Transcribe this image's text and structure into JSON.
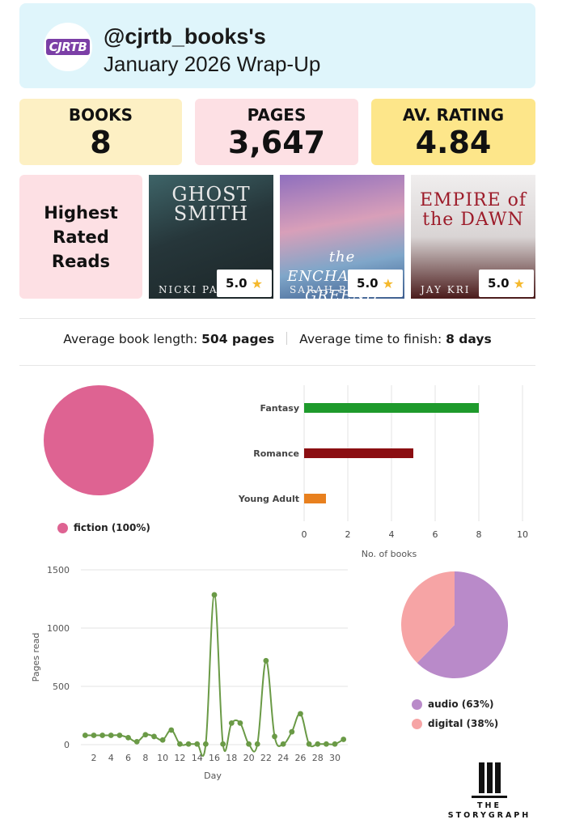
{
  "header": {
    "avatar_text": "CJRTB",
    "handle": "@cjrtb_books's",
    "title": "January 2026 Wrap-Up"
  },
  "stats": {
    "books": {
      "label": "BOOKS",
      "value": "8"
    },
    "pages": {
      "label": "PAGES",
      "value": "3,647"
    },
    "rating": {
      "label": "AV. RATING",
      "value": "4.84"
    }
  },
  "highest_rated": {
    "label": "Highest\nRated\nReads",
    "books": [
      {
        "title": "GHOST SMITH",
        "author": "NICKI PAU",
        "rating": "5.0"
      },
      {
        "title": "the ENCHANTED GREENH",
        "author": "SARAH BETH",
        "rating": "5.0"
      },
      {
        "title": "EMPIRE of the DAWN",
        "author": "JAY KRI",
        "rating": "5.0"
      }
    ]
  },
  "averages": {
    "length_label": "Average book length:",
    "length_value": "504 pages",
    "time_label": "Average time to finish:",
    "time_value": "8 days"
  },
  "colors": {
    "header_bg": "#dff5fb",
    "books_bg": "#fdf0c4",
    "pages_bg": "#fde0e4",
    "rating_bg": "#fde68a",
    "fiction": "#de6392",
    "audio": "#b98ac9",
    "digital": "#f6a4a5",
    "line": "#6a9a46",
    "star": "#f5b92d"
  },
  "chart_data": [
    {
      "type": "pie",
      "labels": [
        "fiction (100%)"
      ],
      "values": [
        100
      ],
      "colors": [
        "#de6392"
      ],
      "legend": "bottom"
    },
    {
      "type": "bar",
      "orientation": "horizontal",
      "categories": [
        "Fantasy",
        "Romance",
        "Young Adult"
      ],
      "values": [
        8,
        5,
        1
      ],
      "colors": [
        "#1e9a2c",
        "#8b0e12",
        "#e8801e"
      ],
      "xlabel": "No. of books",
      "xlim": [
        0,
        10
      ],
      "xticks": [
        "0",
        "2",
        "4",
        "6",
        "8",
        "10"
      ],
      "grid": true
    },
    {
      "type": "line",
      "x": [
        1,
        2,
        3,
        4,
        5,
        6,
        7,
        8,
        9,
        10,
        11,
        12,
        13,
        14,
        15,
        16,
        17,
        18,
        19,
        20,
        21,
        22,
        23,
        24,
        25,
        26,
        27,
        28,
        29,
        30,
        31
      ],
      "values": [
        80,
        80,
        80,
        80,
        80,
        60,
        25,
        85,
        70,
        40,
        125,
        5,
        5,
        5,
        5,
        1285,
        5,
        185,
        185,
        5,
        5,
        720,
        70,
        5,
        110,
        265,
        5,
        5,
        5,
        5,
        45
      ],
      "xlabel": "Day",
      "ylabel": "Pages read",
      "ylim": [
        0,
        1500
      ],
      "yticks": [
        "0",
        "500",
        "1000",
        "1500"
      ],
      "xticks": [
        "2",
        "4",
        "6",
        "8",
        "10",
        "12",
        "14",
        "16",
        "18",
        "20",
        "22",
        "24",
        "26",
        "28",
        "30"
      ],
      "color": "#6a9a46",
      "grid": true
    },
    {
      "type": "pie",
      "labels": [
        "audio (63%)",
        "digital (38%)"
      ],
      "values": [
        63,
        38
      ],
      "colors": [
        "#b98ac9",
        "#f6a4a5"
      ],
      "legend": "bottom"
    }
  ],
  "brand": {
    "line1": "THE",
    "line2": "STORYGRAPH"
  }
}
